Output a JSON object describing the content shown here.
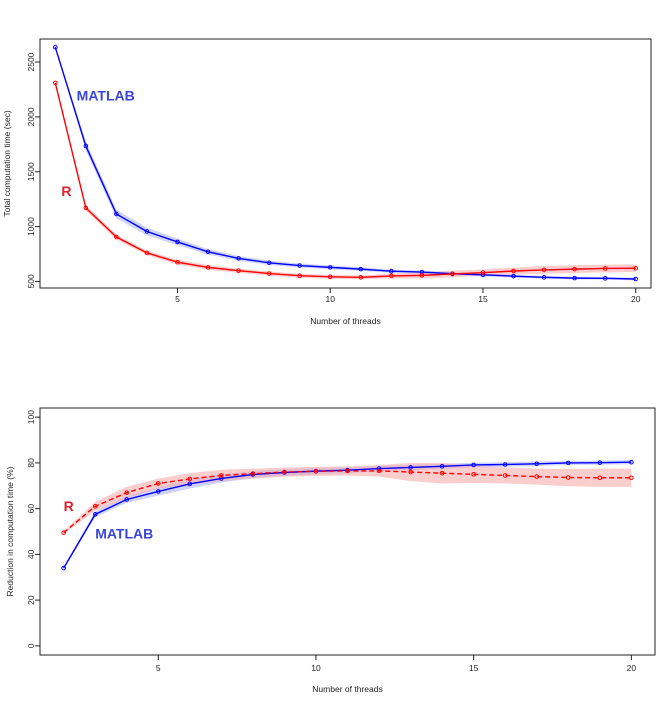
{
  "chart_data": [
    {
      "type": "line",
      "xlabel": "Number of threads",
      "ylabel": "Total computation time (sec)",
      "xlim": [
        0.5,
        20.5
      ],
      "ylim": [
        440,
        2710
      ],
      "xticks": [
        5,
        10,
        15,
        20
      ],
      "yticks": [
        500,
        1000,
        1500,
        2000,
        2500
      ],
      "grid": false,
      "legend": "none",
      "annotations": [
        {
          "text": "MATLAB",
          "color": "#3a47d6",
          "x": 1.7,
          "y": 2150
        },
        {
          "text": "R",
          "color": "#e0202a",
          "x": 1.2,
          "y": 1280
        }
      ],
      "series": [
        {
          "name": "MATLAB",
          "color": "#0000ff",
          "band_color": "#a7b0f5",
          "dashed": false,
          "x": [
            1,
            2,
            3,
            4,
            5,
            6,
            7,
            8,
            9,
            10,
            11,
            12,
            13,
            14,
            15,
            16,
            17,
            18,
            19,
            20
          ],
          "values": [
            2635,
            1735,
            1115,
            955,
            860,
            770,
            710,
            670,
            645,
            628,
            612,
            593,
            585,
            570,
            560,
            548,
            537,
            530,
            528,
            522
          ],
          "band": [
            10,
            40,
            40,
            35,
            30,
            25,
            22,
            20,
            18,
            18,
            16,
            15,
            15,
            14,
            14,
            13,
            12,
            12,
            12,
            12
          ]
        },
        {
          "name": "R",
          "color": "#ff0000",
          "band_color": "#f7a6a6",
          "dashed": false,
          "x": [
            1,
            2,
            3,
            4,
            5,
            6,
            7,
            8,
            9,
            10,
            11,
            12,
            13,
            14,
            15,
            16,
            17,
            18,
            19,
            20
          ],
          "values": [
            2310,
            1170,
            905,
            760,
            675,
            628,
            598,
            572,
            552,
            542,
            537,
            550,
            555,
            568,
            580,
            595,
            605,
            612,
            618,
            620
          ],
          "band": [
            10,
            25,
            22,
            20,
            22,
            22,
            20,
            18,
            18,
            18,
            16,
            22,
            28,
            30,
            30,
            32,
            35,
            35,
            35,
            35
          ]
        }
      ]
    },
    {
      "type": "line",
      "xlabel": "Number of threads",
      "ylabel": "Reduction in computation time (%)",
      "xlim": [
        1.25,
        20.75
      ],
      "ylim": [
        -4,
        104
      ],
      "xticks": [
        5,
        10,
        15,
        20
      ],
      "yticks": [
        0,
        20,
        40,
        60,
        80,
        100
      ],
      "grid": false,
      "legend": "none",
      "annotations": [
        {
          "text": "R",
          "color": "#e0202a",
          "x": 2.0,
          "y": 59
        },
        {
          "text": "MATLAB",
          "color": "#3a47d6",
          "x": 3.0,
          "y": 47
        }
      ],
      "series": [
        {
          "name": "MATLAB",
          "color": "#0000ff",
          "band_color": "#a7b0f5",
          "dashed": false,
          "x": [
            2,
            3,
            4,
            5,
            6,
            7,
            8,
            9,
            10,
            11,
            12,
            13,
            14,
            15,
            16,
            17,
            18,
            19,
            20
          ],
          "values": [
            34,
            57.5,
            64,
            67.5,
            70.8,
            73.2,
            74.9,
            75.8,
            76.4,
            76.8,
            77.5,
            78,
            78.5,
            79.1,
            79.3,
            79.6,
            80,
            80.1,
            80.3
          ],
          "band": [
            0.5,
            1.2,
            1.5,
            1.8,
            2,
            1.8,
            1.6,
            1.5,
            1.4,
            1.3,
            1.2,
            1.2,
            1.1,
            1,
            1,
            1,
            0.9,
            0.9,
            0.9
          ]
        },
        {
          "name": "R",
          "color": "#ff0000",
          "band_color": "#f7a6a6",
          "dashed": true,
          "x": [
            2,
            3,
            4,
            5,
            6,
            7,
            8,
            9,
            10,
            11,
            12,
            13,
            14,
            15,
            16,
            17,
            18,
            19,
            20
          ],
          "values": [
            49.5,
            61,
            67,
            71,
            73,
            74.5,
            75.3,
            76,
            76.3,
            76.5,
            76.5,
            76,
            75.5,
            75,
            74.5,
            74,
            73.6,
            73.5,
            73.5
          ],
          "band": [
            0.5,
            2,
            2.5,
            2.2,
            2.5,
            2.5,
            2.2,
            2,
            2,
            2,
            2.5,
            4,
            4.5,
            3.8,
            3.5,
            3.5,
            3.8,
            4,
            4
          ]
        }
      ]
    }
  ]
}
